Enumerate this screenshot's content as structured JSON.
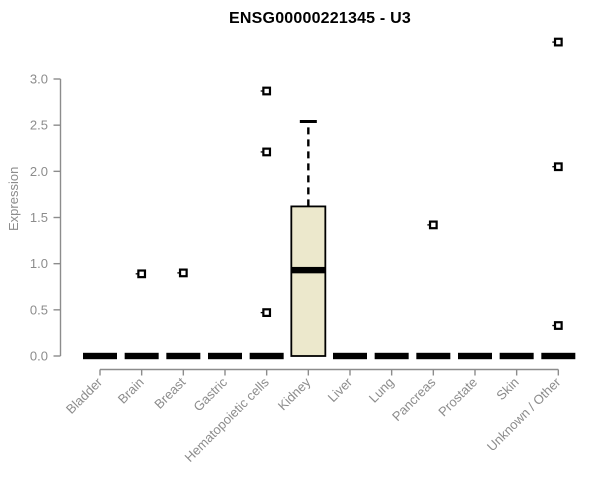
{
  "chart_data": {
    "type": "boxplot",
    "title": "ENSG00000221345 - U3",
    "ylabel": "Expression",
    "xlabel": "",
    "ylim": [
      0.0,
      3.0
    ],
    "yticks": [
      0.0,
      0.5,
      1.0,
      1.5,
      2.0,
      2.5,
      3.0
    ],
    "grid": false,
    "legend": null,
    "categories": [
      "Bladder",
      "Brain",
      "Breast",
      "Gastric",
      "Hematopoietic cells",
      "Kidney",
      "Liver",
      "Lung",
      "Pancreas",
      "Prostate",
      "Skin",
      "Unknown / Other"
    ],
    "boxes": [
      {
        "category": "Bladder",
        "q1": 0.0,
        "median": 0.0,
        "q3": 0.0,
        "whisker_low": 0.0,
        "whisker_high": 0.0,
        "outliers": []
      },
      {
        "category": "Brain",
        "q1": 0.0,
        "median": 0.0,
        "q3": 0.0,
        "whisker_low": 0.0,
        "whisker_high": 0.0,
        "outliers": [
          0.89
        ]
      },
      {
        "category": "Breast",
        "q1": 0.0,
        "median": 0.0,
        "q3": 0.0,
        "whisker_low": 0.0,
        "whisker_high": 0.0,
        "outliers": [
          0.9
        ]
      },
      {
        "category": "Gastric",
        "q1": 0.0,
        "median": 0.0,
        "q3": 0.0,
        "whisker_low": 0.0,
        "whisker_high": 0.0,
        "outliers": []
      },
      {
        "category": "Hematopoietic cells",
        "q1": 0.0,
        "median": 0.0,
        "q3": 0.0,
        "whisker_low": 0.0,
        "whisker_high": 0.0,
        "outliers": [
          2.87,
          2.21,
          0.47
        ]
      },
      {
        "category": "Kidney",
        "q1": 0.0,
        "median": 0.93,
        "q3": 1.62,
        "whisker_low": 0.0,
        "whisker_high": 2.54,
        "outliers": []
      },
      {
        "category": "Liver",
        "q1": 0.0,
        "median": 0.0,
        "q3": 0.0,
        "whisker_low": 0.0,
        "whisker_high": 0.0,
        "outliers": []
      },
      {
        "category": "Lung",
        "q1": 0.0,
        "median": 0.0,
        "q3": 0.0,
        "whisker_low": 0.0,
        "whisker_high": 0.0,
        "outliers": []
      },
      {
        "category": "Pancreas",
        "q1": 0.0,
        "median": 0.0,
        "q3": 0.0,
        "whisker_low": 0.0,
        "whisker_high": 0.0,
        "outliers": [
          1.42
        ]
      },
      {
        "category": "Prostate",
        "q1": 0.0,
        "median": 0.0,
        "q3": 0.0,
        "whisker_low": 0.0,
        "whisker_high": 0.0,
        "outliers": []
      },
      {
        "category": "Skin",
        "q1": 0.0,
        "median": 0.0,
        "q3": 0.0,
        "whisker_low": 0.0,
        "whisker_high": 0.0,
        "outliers": []
      },
      {
        "category": "Unknown / Other",
        "q1": 0.0,
        "median": 0.0,
        "q3": 0.0,
        "whisker_low": 0.0,
        "whisker_high": 0.0,
        "outliers": [
          3.4,
          2.05,
          0.33
        ]
      }
    ],
    "colors": {
      "box_fill": "#ece8cc",
      "box_stroke": "#000000",
      "axis": "#8c8c8c",
      "tick_label": "#8c8c8c",
      "title": "#000000",
      "background": "#ffffff"
    }
  }
}
